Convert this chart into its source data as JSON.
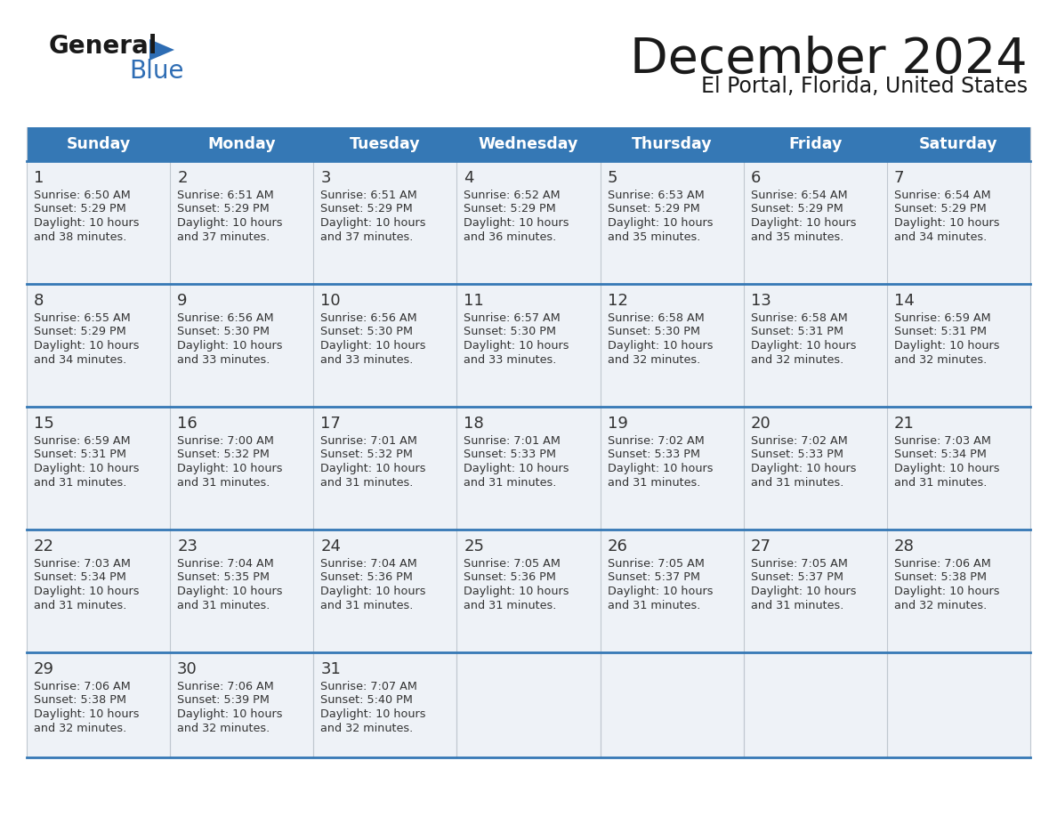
{
  "title": "December 2024",
  "subtitle": "El Portal, Florida, United States",
  "header_color": "#3578b5",
  "header_text_color": "#ffffff",
  "cell_bg_color": "#eef2f7",
  "border_color": "#3578b5",
  "col_border_color": "#c0c8d0",
  "day_names": [
    "Sunday",
    "Monday",
    "Tuesday",
    "Wednesday",
    "Thursday",
    "Friday",
    "Saturday"
  ],
  "weeks": [
    [
      {
        "day": 1,
        "sunrise": "6:50 AM",
        "sunset": "5:29 PM",
        "daylight": "10 hours and 38 minutes."
      },
      {
        "day": 2,
        "sunrise": "6:51 AM",
        "sunset": "5:29 PM",
        "daylight": "10 hours and 37 minutes."
      },
      {
        "day": 3,
        "sunrise": "6:51 AM",
        "sunset": "5:29 PM",
        "daylight": "10 hours and 37 minutes."
      },
      {
        "day": 4,
        "sunrise": "6:52 AM",
        "sunset": "5:29 PM",
        "daylight": "10 hours and 36 minutes."
      },
      {
        "day": 5,
        "sunrise": "6:53 AM",
        "sunset": "5:29 PM",
        "daylight": "10 hours and 35 minutes."
      },
      {
        "day": 6,
        "sunrise": "6:54 AM",
        "sunset": "5:29 PM",
        "daylight": "10 hours and 35 minutes."
      },
      {
        "day": 7,
        "sunrise": "6:54 AM",
        "sunset": "5:29 PM",
        "daylight": "10 hours and 34 minutes."
      }
    ],
    [
      {
        "day": 8,
        "sunrise": "6:55 AM",
        "sunset": "5:29 PM",
        "daylight": "10 hours and 34 minutes."
      },
      {
        "day": 9,
        "sunrise": "6:56 AM",
        "sunset": "5:30 PM",
        "daylight": "10 hours and 33 minutes."
      },
      {
        "day": 10,
        "sunrise": "6:56 AM",
        "sunset": "5:30 PM",
        "daylight": "10 hours and 33 minutes."
      },
      {
        "day": 11,
        "sunrise": "6:57 AM",
        "sunset": "5:30 PM",
        "daylight": "10 hours and 33 minutes."
      },
      {
        "day": 12,
        "sunrise": "6:58 AM",
        "sunset": "5:30 PM",
        "daylight": "10 hours and 32 minutes."
      },
      {
        "day": 13,
        "sunrise": "6:58 AM",
        "sunset": "5:31 PM",
        "daylight": "10 hours and 32 minutes."
      },
      {
        "day": 14,
        "sunrise": "6:59 AM",
        "sunset": "5:31 PM",
        "daylight": "10 hours and 32 minutes."
      }
    ],
    [
      {
        "day": 15,
        "sunrise": "6:59 AM",
        "sunset": "5:31 PM",
        "daylight": "10 hours and 31 minutes."
      },
      {
        "day": 16,
        "sunrise": "7:00 AM",
        "sunset": "5:32 PM",
        "daylight": "10 hours and 31 minutes."
      },
      {
        "day": 17,
        "sunrise": "7:01 AM",
        "sunset": "5:32 PM",
        "daylight": "10 hours and 31 minutes."
      },
      {
        "day": 18,
        "sunrise": "7:01 AM",
        "sunset": "5:33 PM",
        "daylight": "10 hours and 31 minutes."
      },
      {
        "day": 19,
        "sunrise": "7:02 AM",
        "sunset": "5:33 PM",
        "daylight": "10 hours and 31 minutes."
      },
      {
        "day": 20,
        "sunrise": "7:02 AM",
        "sunset": "5:33 PM",
        "daylight": "10 hours and 31 minutes."
      },
      {
        "day": 21,
        "sunrise": "7:03 AM",
        "sunset": "5:34 PM",
        "daylight": "10 hours and 31 minutes."
      }
    ],
    [
      {
        "day": 22,
        "sunrise": "7:03 AM",
        "sunset": "5:34 PM",
        "daylight": "10 hours and 31 minutes."
      },
      {
        "day": 23,
        "sunrise": "7:04 AM",
        "sunset": "5:35 PM",
        "daylight": "10 hours and 31 minutes."
      },
      {
        "day": 24,
        "sunrise": "7:04 AM",
        "sunset": "5:36 PM",
        "daylight": "10 hours and 31 minutes."
      },
      {
        "day": 25,
        "sunrise": "7:05 AM",
        "sunset": "5:36 PM",
        "daylight": "10 hours and 31 minutes."
      },
      {
        "day": 26,
        "sunrise": "7:05 AM",
        "sunset": "5:37 PM",
        "daylight": "10 hours and 31 minutes."
      },
      {
        "day": 27,
        "sunrise": "7:05 AM",
        "sunset": "5:37 PM",
        "daylight": "10 hours and 31 minutes."
      },
      {
        "day": 28,
        "sunrise": "7:06 AM",
        "sunset": "5:38 PM",
        "daylight": "10 hours and 32 minutes."
      }
    ],
    [
      {
        "day": 29,
        "sunrise": "7:06 AM",
        "sunset": "5:38 PM",
        "daylight": "10 hours and 32 minutes."
      },
      {
        "day": 30,
        "sunrise": "7:06 AM",
        "sunset": "5:39 PM",
        "daylight": "10 hours and 32 minutes."
      },
      {
        "day": 31,
        "sunrise": "7:07 AM",
        "sunset": "5:40 PM",
        "daylight": "10 hours and 32 minutes."
      },
      null,
      null,
      null,
      null
    ]
  ],
  "logo_general_color": "#1a1a1a",
  "logo_blue_color": "#2e6db4",
  "background_color": "#ffffff",
  "text_color": "#333333"
}
